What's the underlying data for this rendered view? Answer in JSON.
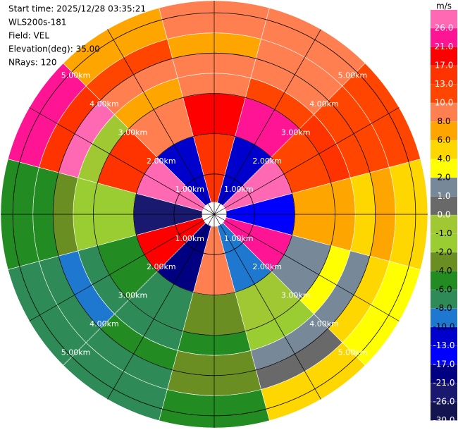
{
  "header": {
    "lines": [
      "Start time: 2025/12/28 03:35:21",
      "WLS200s-181",
      "Field: VEL",
      "Elevation(deg): 35.00",
      "NRays: 120"
    ]
  },
  "chart_data": {
    "type": "ppi",
    "azimuths": [
      0,
      30,
      60,
      90,
      120,
      150,
      180,
      210,
      240,
      270,
      300,
      330
    ],
    "range_edges": [
      0.3,
      2.0,
      3.0,
      3.5,
      4.0,
      4.5,
      5.3
    ],
    "values": [
      [
        13,
        17,
        8,
        8,
        6,
        8
      ],
      [
        -13,
        21,
        10,
        8,
        8,
        8
      ],
      [
        26,
        10,
        13,
        10,
        10,
        10
      ],
      [
        -17,
        6,
        6,
        4,
        6,
        4
      ],
      [
        21,
        1,
        2,
        1,
        4,
        2
      ],
      [
        -10,
        -1,
        -2,
        1,
        0,
        4
      ],
      [
        8,
        -4,
        -6,
        -4,
        -4,
        -6
      ],
      [
        -21,
        -8,
        -8,
        -6,
        -8,
        -8
      ],
      [
        17,
        -6,
        -8,
        -10,
        -8,
        -8
      ],
      [
        -26,
        -2,
        -2,
        -4,
        -6,
        -6
      ],
      [
        26,
        13,
        -1,
        26,
        13,
        21
      ],
      [
        -13,
        8,
        6,
        8,
        10,
        6
      ]
    ],
    "rlim": [
      0,
      5.3
    ],
    "rings": [
      {
        "value": 1,
        "label": "1.00km"
      },
      {
        "value": 2,
        "label": "2.00km"
      },
      {
        "value": 3,
        "label": "3.00km"
      },
      {
        "value": 4,
        "label": "4.00km"
      },
      {
        "value": 5,
        "label": "5.00km"
      }
    ],
    "colorbar": {
      "title": "m/s",
      "ticks": [
        {
          "value": 26,
          "label": "26.0"
        },
        {
          "value": 21,
          "label": "21.0"
        },
        {
          "value": 17,
          "label": "17.0"
        },
        {
          "value": 13,
          "label": "13.0"
        },
        {
          "value": 10,
          "label": "10.0"
        },
        {
          "value": 8,
          "label": "8.0"
        },
        {
          "value": 6,
          "label": "6.0"
        },
        {
          "value": 4,
          "label": "4.0"
        },
        {
          "value": 2,
          "label": "2.0"
        },
        {
          "value": 1,
          "label": "1.0"
        },
        {
          "value": 0,
          "label": "0.0"
        },
        {
          "value": -1,
          "label": "-1.0"
        },
        {
          "value": -2,
          "label": "-2.0"
        },
        {
          "value": -4,
          "label": "-4.0"
        },
        {
          "value": -6,
          "label": "-6.0"
        },
        {
          "value": -8,
          "label": "-8.0"
        },
        {
          "value": -10,
          "label": "-10.0"
        },
        {
          "value": -13,
          "label": "-13.0"
        },
        {
          "value": -17,
          "label": "-17.0"
        },
        {
          "value": -21,
          "label": "-21.0"
        },
        {
          "value": -26,
          "label": "-26.0"
        },
        {
          "value": -30,
          "label": "-30.0"
        }
      ],
      "colors": [
        "#ff69b4",
        "#ff1493",
        "#ff0000",
        "#ff3300",
        "#ff4500",
        "#ff7f50",
        "#ffa500",
        "#ffd700",
        "#ffff00",
        "#778899",
        "#696969",
        "#a0c832",
        "#9acd32",
        "#6b8e23",
        "#228b22",
        "#2e8b57",
        "#1e78d0",
        "#0000cd",
        "#0000ff",
        "#000080",
        "#191970",
        "#141450"
      ]
    }
  }
}
